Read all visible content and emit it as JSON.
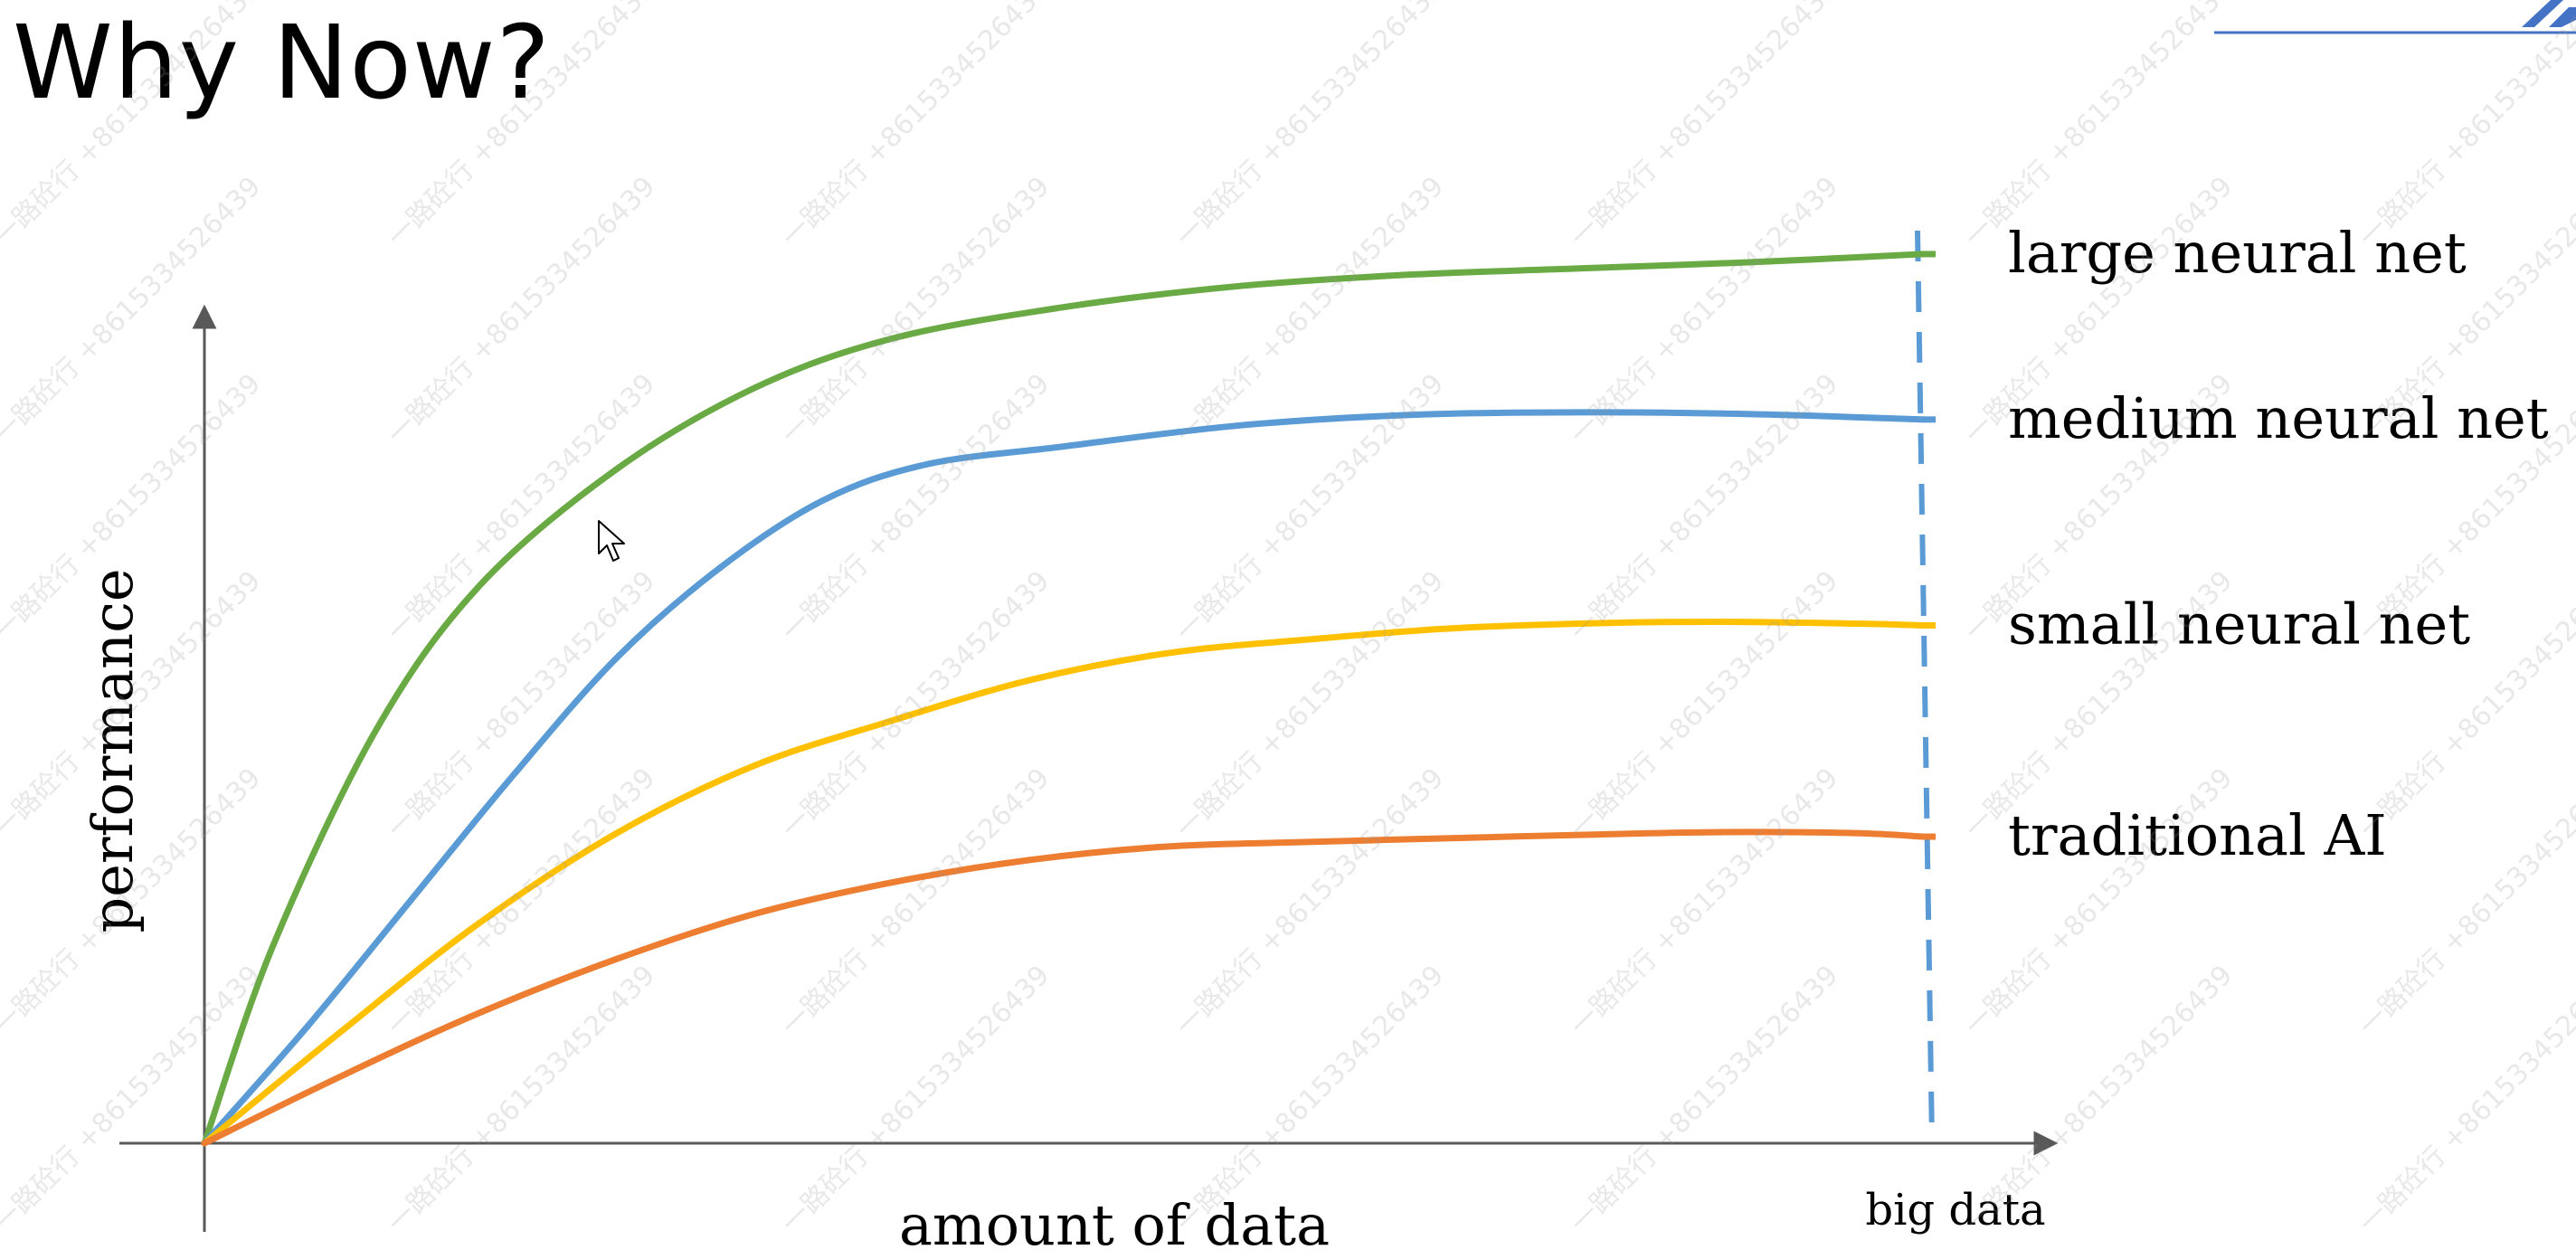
{
  "slide": {
    "title": "Why Now?",
    "watermark": "一路砼行 +8615334526439"
  },
  "colors": {
    "large": "#6aaa45",
    "medium": "#5b9bd5",
    "small": "#ffc000",
    "traditional": "#ed7d31",
    "axis": "#595959",
    "marker": "#5b9bd5",
    "logo": "#4472c4"
  },
  "icons": {
    "cursor": "mouse-pointer-icon",
    "logo": "brand-logo-icon"
  },
  "chart_data": {
    "type": "line",
    "title": "",
    "xlabel": "amount of data",
    "ylabel": "performance",
    "xlim": [
      0,
      100
    ],
    "ylim": [
      0,
      100
    ],
    "grid": false,
    "legend": "right",
    "x_marker": {
      "x": 100,
      "label": "big data",
      "style": "dashed"
    },
    "series": [
      {
        "name": "large neural net",
        "color": "#6aaa45",
        "x": [
          0,
          4,
          10,
          16,
          24,
          32,
          40,
          50,
          60,
          70,
          80,
          90,
          100
        ],
        "y": [
          0,
          22,
          46,
          62,
          75,
          84,
          89.5,
          93,
          95.3,
          96.6,
          97.3,
          98,
          98.9
        ]
      },
      {
        "name": "medium neural net",
        "color": "#5b9bd5",
        "x": [
          0,
          6,
          12,
          18,
          24,
          30,
          36,
          42,
          50,
          60,
          70,
          80,
          90,
          100
        ],
        "y": [
          0,
          13,
          27,
          41,
          54,
          64,
          71.5,
          75.5,
          77.5,
          79.8,
          81,
          81.3,
          81.1,
          80.5
        ]
      },
      {
        "name": "small neural net",
        "color": "#ffc000",
        "x": [
          0,
          8,
          16,
          24,
          32,
          40,
          48,
          56,
          64,
          72,
          80,
          88,
          96,
          100
        ],
        "y": [
          0,
          12.5,
          24.5,
          34.5,
          42,
          47,
          51.5,
          54.5,
          56,
          57.2,
          57.8,
          58,
          57.8,
          57.6
        ]
      },
      {
        "name": "traditional AI",
        "color": "#ed7d31",
        "x": [
          0,
          8,
          16,
          24,
          32,
          40,
          48,
          56,
          64,
          72,
          80,
          88,
          96,
          100
        ],
        "y": [
          0,
          7.5,
          14.5,
          20.5,
          25.5,
          29,
          31.5,
          33,
          33.5,
          33.9,
          34.3,
          34.6,
          34.5,
          34.1
        ]
      }
    ]
  }
}
